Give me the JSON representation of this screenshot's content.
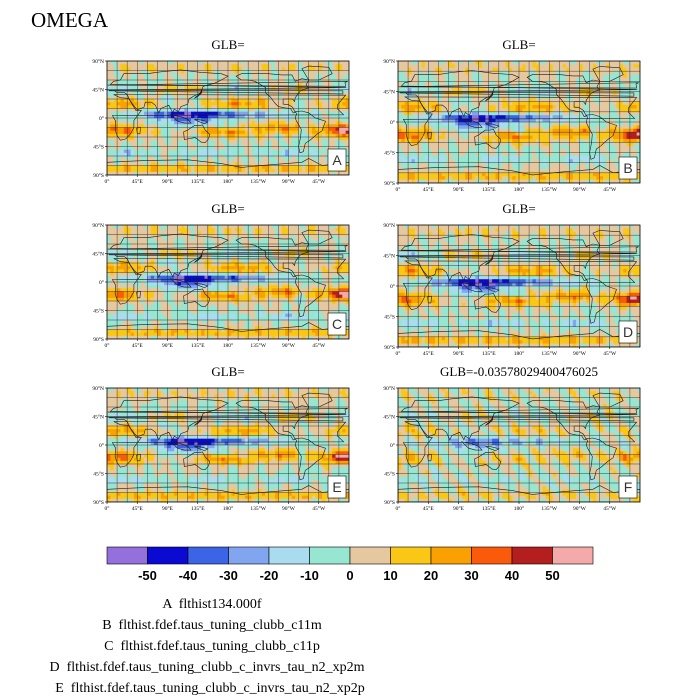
{
  "figure_title": "OMEGA",
  "colors": {
    "land_outline": "#1a1a1a",
    "grid": "#222222",
    "frame": "#000000"
  },
  "chart_data": {
    "type": "heatmap",
    "variable": "OMEGA",
    "lat_ticks": [
      "90°N",
      "45°N",
      "0°",
      "45°S",
      "90°S"
    ],
    "lon_ticks": [
      "0°",
      "45°E",
      "90°E",
      "135°E",
      "180°",
      "135°W",
      "90°W",
      "45°W"
    ],
    "panels": [
      {
        "label": "A",
        "title": "GLB="
      },
      {
        "label": "B",
        "title": "GLB="
      },
      {
        "label": "C",
        "title": "GLB="
      },
      {
        "label": "D",
        "title": "GLB="
      },
      {
        "label": "E",
        "title": "GLB="
      },
      {
        "label": "F",
        "title": "GLB=-0.03578029400476025"
      }
    ],
    "colorbar": {
      "levels": [
        -50,
        -40,
        -30,
        -20,
        -10,
        0,
        10,
        20,
        30,
        40,
        50
      ],
      "colors": [
        "#9470dc",
        "#0a0ad2",
        "#3c64e6",
        "#82a5f0",
        "#aadcf0",
        "#96e6d2",
        "#e6c8a0",
        "#fac814",
        "#faa000",
        "#fa5a0a",
        "#b41e1e",
        "#f5aaaa"
      ]
    }
  },
  "legend": [
    {
      "key": "A",
      "name": "flthist134.000f"
    },
    {
      "key": "B",
      "name": "flthist.fdef.taus_tuning_clubb_c11m"
    },
    {
      "key": "C",
      "name": "flthist.fdef.taus_tuning_clubb_c11p"
    },
    {
      "key": "D",
      "name": "flthist.fdef.taus_tuning_clubb_c_invrs_tau_n2_xp2m"
    },
    {
      "key": "E",
      "name": "flthist.fdef.taus_tuning_clubb_c_invrs_tau_n2_xp2p"
    }
  ]
}
